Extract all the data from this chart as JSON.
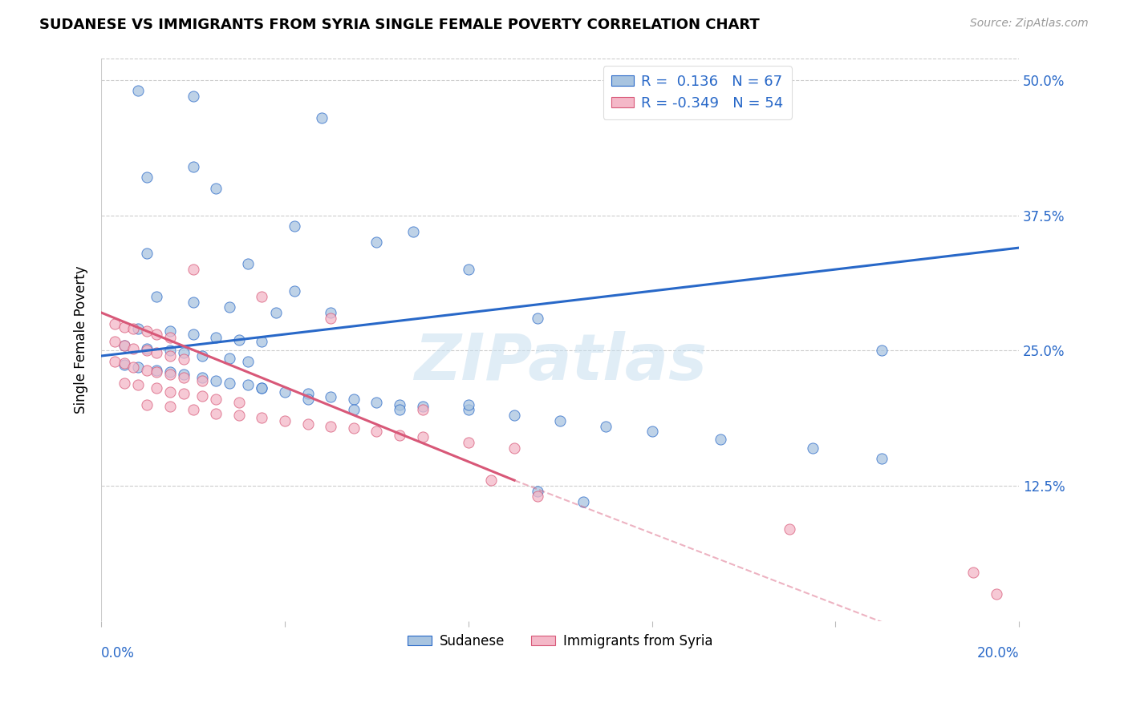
{
  "title": "SUDANESE VS IMMIGRANTS FROM SYRIA SINGLE FEMALE POVERTY CORRELATION CHART",
  "source": "Source: ZipAtlas.com",
  "ylabel": "Single Female Poverty",
  "y_ticks": [
    0.0,
    0.125,
    0.25,
    0.375,
    0.5
  ],
  "y_tick_labels": [
    "",
    "12.5%",
    "25.0%",
    "37.5%",
    "50.0%"
  ],
  "xlim": [
    0.0,
    0.2
  ],
  "ylim": [
    0.0,
    0.52
  ],
  "R_sudanese": 0.136,
  "N_sudanese": 67,
  "R_syria": -0.349,
  "N_syria": 54,
  "color_sudanese": "#a8c4e0",
  "color_syria": "#f4b8c8",
  "line_color_sudanese": "#2868c8",
  "line_color_syria": "#d85878",
  "watermark": "ZIPatlas",
  "legend_label_1": "Sudanese",
  "legend_label_2": "Immigrants from Syria",
  "blue_line": [
    0.0,
    0.245,
    0.2,
    0.345
  ],
  "pink_line_solid": [
    0.0,
    0.285,
    0.09,
    0.13
  ],
  "pink_line_dash": [
    0.09,
    0.13,
    0.2,
    -0.05
  ],
  "sudanese_x": [
    0.008,
    0.02,
    0.048,
    0.02,
    0.01,
    0.025,
    0.042,
    0.068,
    0.01,
    0.032,
    0.042,
    0.012,
    0.02,
    0.028,
    0.038,
    0.05,
    0.008,
    0.015,
    0.02,
    0.025,
    0.03,
    0.035,
    0.005,
    0.01,
    0.015,
    0.018,
    0.022,
    0.028,
    0.032,
    0.005,
    0.008,
    0.012,
    0.015,
    0.018,
    0.022,
    0.025,
    0.028,
    0.032,
    0.035,
    0.04,
    0.045,
    0.05,
    0.055,
    0.06,
    0.065,
    0.07,
    0.08,
    0.09,
    0.1,
    0.11,
    0.12,
    0.135,
    0.155,
    0.17,
    0.06,
    0.08,
    0.095,
    0.17,
    0.035,
    0.045,
    0.055,
    0.065,
    0.08,
    0.095,
    0.105
  ],
  "sudanese_y": [
    0.49,
    0.485,
    0.465,
    0.42,
    0.41,
    0.4,
    0.365,
    0.36,
    0.34,
    0.33,
    0.305,
    0.3,
    0.295,
    0.29,
    0.285,
    0.285,
    0.27,
    0.268,
    0.265,
    0.262,
    0.26,
    0.258,
    0.255,
    0.252,
    0.25,
    0.248,
    0.245,
    0.243,
    0.24,
    0.237,
    0.235,
    0.232,
    0.23,
    0.228,
    0.225,
    0.222,
    0.22,
    0.218,
    0.215,
    0.212,
    0.21,
    0.207,
    0.205,
    0.202,
    0.2,
    0.198,
    0.195,
    0.19,
    0.185,
    0.18,
    0.175,
    0.168,
    0.16,
    0.15,
    0.35,
    0.325,
    0.28,
    0.25,
    0.215,
    0.205,
    0.195,
    0.195,
    0.2,
    0.12,
    0.11
  ],
  "syria_x": [
    0.003,
    0.005,
    0.007,
    0.01,
    0.012,
    0.015,
    0.003,
    0.005,
    0.007,
    0.01,
    0.012,
    0.015,
    0.018,
    0.003,
    0.005,
    0.007,
    0.01,
    0.012,
    0.015,
    0.018,
    0.022,
    0.005,
    0.008,
    0.012,
    0.015,
    0.018,
    0.022,
    0.025,
    0.03,
    0.01,
    0.015,
    0.02,
    0.025,
    0.03,
    0.035,
    0.04,
    0.045,
    0.05,
    0.055,
    0.06,
    0.065,
    0.07,
    0.08,
    0.09,
    0.02,
    0.035,
    0.05,
    0.07,
    0.085,
    0.095,
    0.15,
    0.19,
    0.195
  ],
  "syria_y": [
    0.275,
    0.272,
    0.27,
    0.268,
    0.265,
    0.262,
    0.258,
    0.255,
    0.252,
    0.25,
    0.248,
    0.245,
    0.242,
    0.24,
    0.238,
    0.235,
    0.232,
    0.23,
    0.228,
    0.225,
    0.222,
    0.22,
    0.218,
    0.215,
    0.212,
    0.21,
    0.208,
    0.205,
    0.202,
    0.2,
    0.198,
    0.195,
    0.192,
    0.19,
    0.188,
    0.185,
    0.182,
    0.18,
    0.178,
    0.175,
    0.172,
    0.17,
    0.165,
    0.16,
    0.325,
    0.3,
    0.28,
    0.195,
    0.13,
    0.115,
    0.085,
    0.045,
    0.025
  ]
}
